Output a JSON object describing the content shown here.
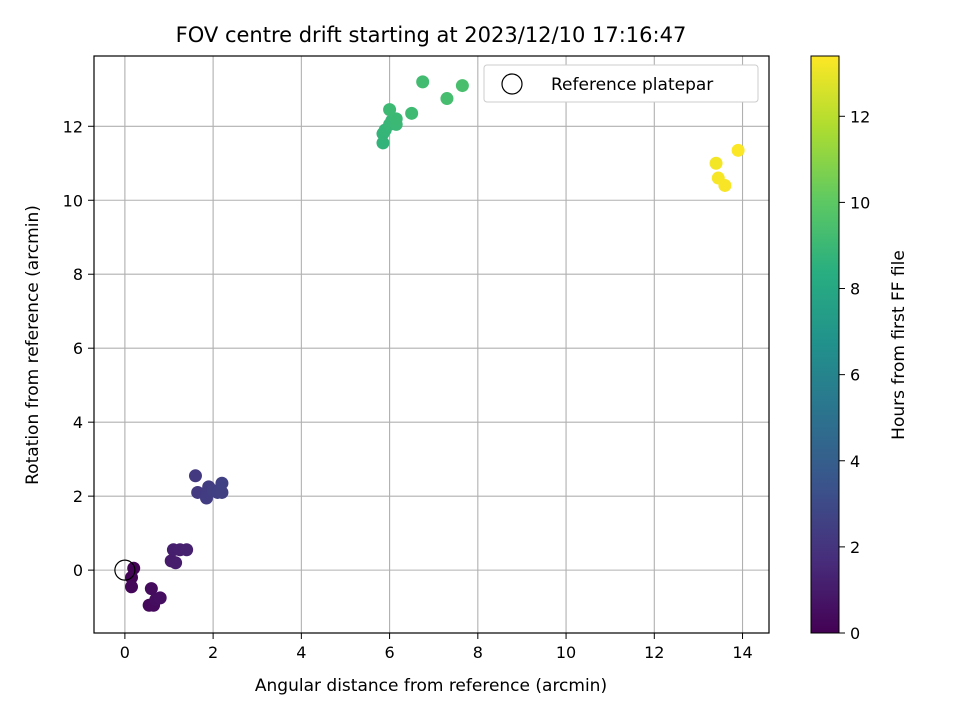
{
  "chart_data": {
    "type": "scatter",
    "title": "FOV centre drift starting at 2023/12/10 17:16:47",
    "xlabel": "Angular distance from reference (arcmin)",
    "ylabel": "Rotation from reference (arcmin)",
    "xlim": [
      -0.7,
      14.6
    ],
    "ylim": [
      -1.7,
      13.9
    ],
    "xticks": [
      0,
      2,
      4,
      6,
      8,
      10,
      12,
      14
    ],
    "yticks": [
      0,
      2,
      4,
      6,
      8,
      10,
      12
    ],
    "grid": true,
    "legend": {
      "placement": "top-right",
      "entries": [
        "Reference platepar"
      ]
    },
    "reference_point": {
      "x": 0,
      "y": 0
    },
    "colorbar": {
      "label": "Hours from first FF file",
      "colormap": "viridis",
      "range": [
        0,
        13.4
      ],
      "ticks": [
        0,
        2,
        4,
        6,
        8,
        10,
        12
      ]
    },
    "points": [
      {
        "x": 0.2,
        "y": 0.05,
        "hours": 0.1
      },
      {
        "x": 0.15,
        "y": -0.2,
        "hours": 0.15
      },
      {
        "x": 0.15,
        "y": -0.45,
        "hours": 0.2
      },
      {
        "x": 0.55,
        "y": -0.95,
        "hours": 0.3
      },
      {
        "x": 0.65,
        "y": -0.95,
        "hours": 0.35
      },
      {
        "x": 0.6,
        "y": -0.5,
        "hours": 0.4
      },
      {
        "x": 0.7,
        "y": -0.8,
        "hours": 0.45
      },
      {
        "x": 0.8,
        "y": -0.75,
        "hours": 0.5
      },
      {
        "x": 1.05,
        "y": 0.25,
        "hours": 1.0
      },
      {
        "x": 1.15,
        "y": 0.2,
        "hours": 1.05
      },
      {
        "x": 1.1,
        "y": 0.55,
        "hours": 1.1
      },
      {
        "x": 1.25,
        "y": 0.55,
        "hours": 1.15
      },
      {
        "x": 1.4,
        "y": 0.55,
        "hours": 1.2
      },
      {
        "x": 1.6,
        "y": 2.55,
        "hours": 2.2
      },
      {
        "x": 1.65,
        "y": 2.1,
        "hours": 2.25
      },
      {
        "x": 1.85,
        "y": 2.1,
        "hours": 2.3
      },
      {
        "x": 1.9,
        "y": 2.25,
        "hours": 2.35
      },
      {
        "x": 1.85,
        "y": 1.95,
        "hours": 2.4
      },
      {
        "x": 2.0,
        "y": 2.15,
        "hours": 2.45
      },
      {
        "x": 2.1,
        "y": 2.1,
        "hours": 2.5
      },
      {
        "x": 2.2,
        "y": 2.1,
        "hours": 2.55
      },
      {
        "x": 2.2,
        "y": 2.35,
        "hours": 2.6
      },
      {
        "x": 5.85,
        "y": 11.55,
        "hours": 8.7
      },
      {
        "x": 5.85,
        "y": 11.8,
        "hours": 8.75
      },
      {
        "x": 5.9,
        "y": 11.9,
        "hours": 8.8
      },
      {
        "x": 6.0,
        "y": 12.05,
        "hours": 8.85
      },
      {
        "x": 6.05,
        "y": 12.15,
        "hours": 8.9
      },
      {
        "x": 6.15,
        "y": 12.05,
        "hours": 8.95
      },
      {
        "x": 6.15,
        "y": 12.2,
        "hours": 9.0
      },
      {
        "x": 6.0,
        "y": 12.45,
        "hours": 9.05
      },
      {
        "x": 6.5,
        "y": 12.35,
        "hours": 9.1
      },
      {
        "x": 6.75,
        "y": 13.2,
        "hours": 9.2
      },
      {
        "x": 7.3,
        "y": 12.75,
        "hours": 9.3
      },
      {
        "x": 7.65,
        "y": 13.1,
        "hours": 9.4
      },
      {
        "x": 13.4,
        "y": 11.0,
        "hours": 13.2
      },
      {
        "x": 13.45,
        "y": 10.6,
        "hours": 13.25
      },
      {
        "x": 13.6,
        "y": 10.4,
        "hours": 13.3
      },
      {
        "x": 13.9,
        "y": 11.35,
        "hours": 13.35
      }
    ]
  }
}
